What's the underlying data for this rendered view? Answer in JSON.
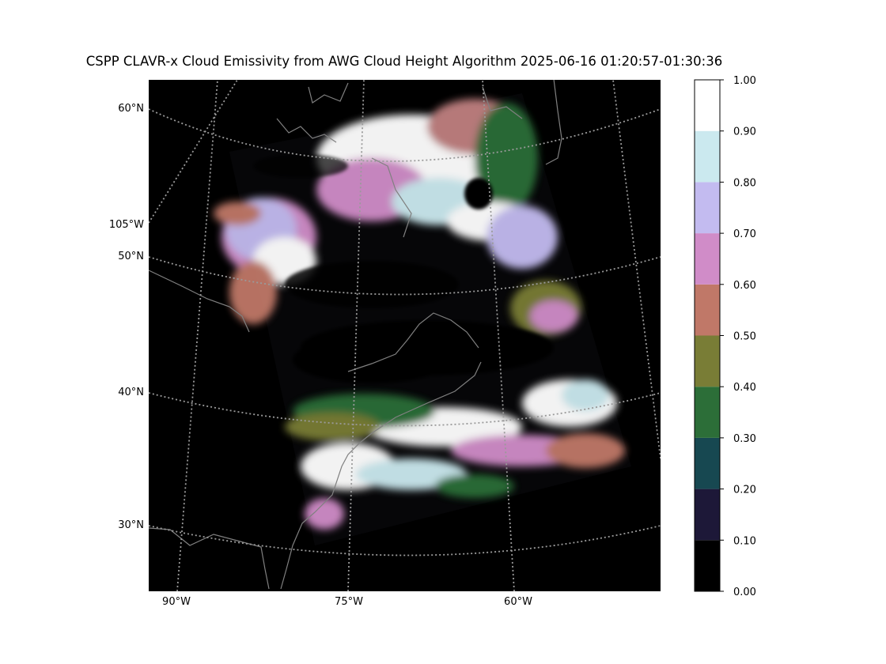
{
  "title": "CSPP CLAVR-x Cloud Emissivity from AWG Cloud Height Algorithm 2025-06-16 01:20:57-01:30:36",
  "map": {
    "lat_labels": [
      "60°N",
      "50°N",
      "40°N",
      "30°N"
    ],
    "lon_labels_left": [
      "105°W"
    ],
    "lon_labels_bottom": [
      "90°W",
      "75°W",
      "60°W"
    ],
    "background": "#000000",
    "coastline_color": "#808080",
    "graticule_color": "#9a9a9a"
  },
  "colorbar": {
    "ticks": [
      "0.00",
      "0.10",
      "0.20",
      "0.30",
      "0.40",
      "0.50",
      "0.60",
      "0.70",
      "0.80",
      "0.90",
      "1.00"
    ],
    "colors": [
      "#000000",
      "#1d1838",
      "#174851",
      "#2c6e38",
      "#797d36",
      "#c07868",
      "#d08cc8",
      "#c3bbf0",
      "#cbe9ef",
      "#ffffff"
    ]
  },
  "chart_data": {
    "type": "heatmap",
    "title": "CSPP CLAVR-x Cloud Emissivity from AWG Cloud Height Algorithm 2025-06-16 01:20:57-01:30:36",
    "colorbar_range": [
      0.0,
      1.0
    ],
    "colorbar_levels": [
      0.0,
      0.1,
      0.2,
      0.3,
      0.4,
      0.5,
      0.6,
      0.7,
      0.8,
      0.9,
      1.0
    ],
    "latitude_gridlines": [
      30,
      40,
      50,
      60
    ],
    "longitude_gridlines": [
      -105,
      -90,
      -75,
      -60
    ]
  }
}
